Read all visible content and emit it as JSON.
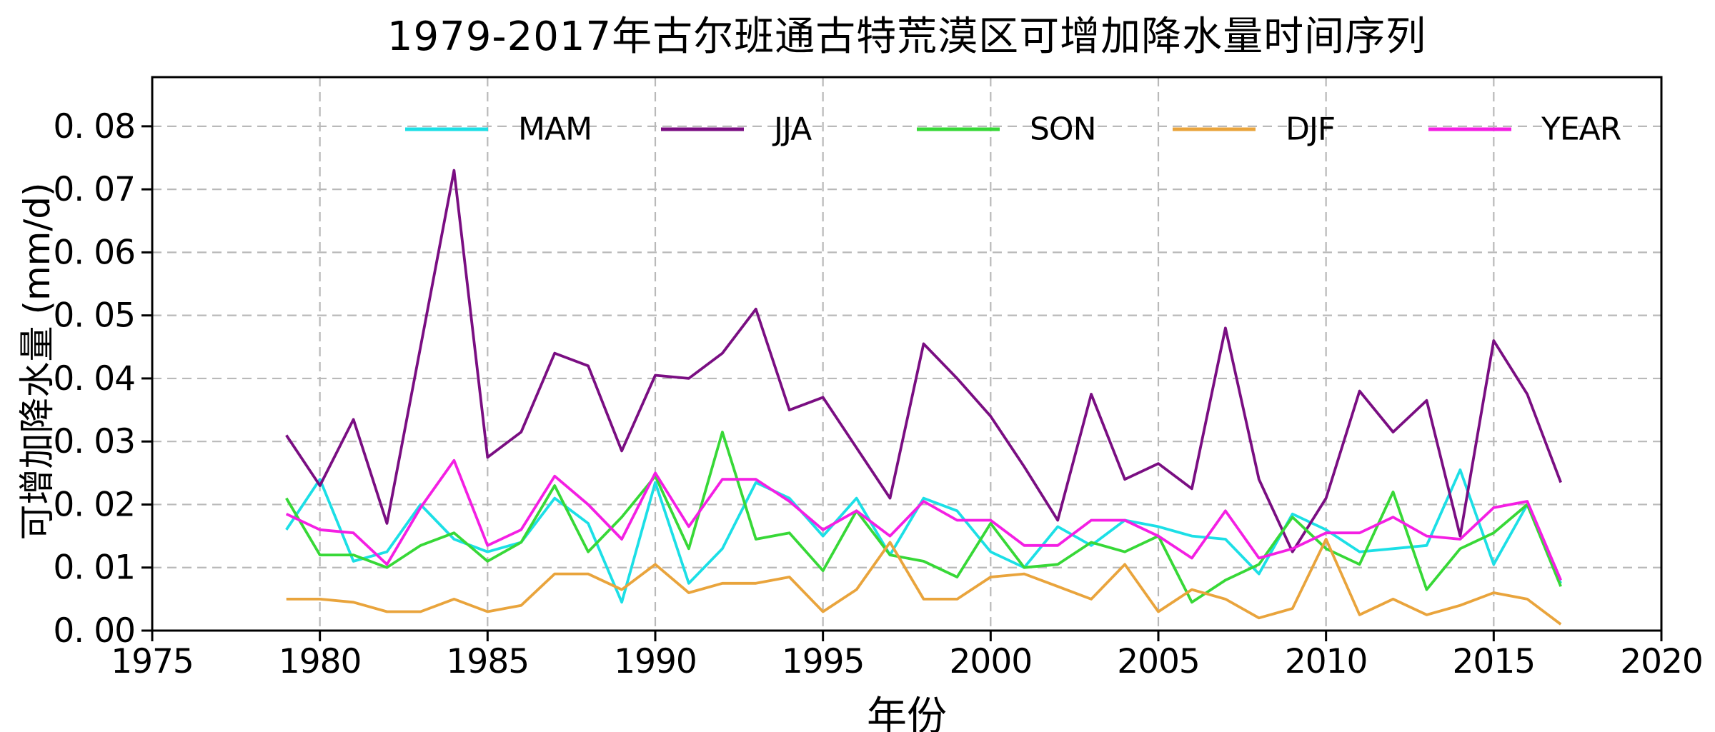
{
  "chart": {
    "title": "1979-2017年古尔班通古特荒漠区可增加降水量时间序列",
    "xlabel": "年份",
    "ylabel": "可增加降水量 (mm/d)"
  },
  "chart_data": {
    "type": "line",
    "title": "1979-2017年古尔班通古特荒漠区可增加降水量时间序列",
    "xlabel": "年份",
    "ylabel": "可增加降水量 (mm/d)",
    "x": [
      1979,
      1980,
      1981,
      1982,
      1983,
      1984,
      1985,
      1986,
      1987,
      1988,
      1989,
      1990,
      1991,
      1992,
      1993,
      1994,
      1995,
      1996,
      1997,
      1998,
      1999,
      2000,
      2001,
      2002,
      2003,
      2004,
      2005,
      2006,
      2007,
      2008,
      2009,
      2010,
      2011,
      2012,
      2013,
      2014,
      2015,
      2016,
      2017
    ],
    "series": [
      {
        "name": "MAM",
        "color": "#1CDFE6",
        "values": [
          0.016,
          0.024,
          0.011,
          0.0125,
          0.02,
          0.0145,
          0.0125,
          0.014,
          0.021,
          0.017,
          0.0045,
          0.0235,
          0.0075,
          0.013,
          0.0235,
          0.021,
          0.015,
          0.021,
          0.012,
          0.021,
          0.019,
          0.0125,
          0.01,
          0.0165,
          0.0135,
          0.0175,
          0.0165,
          0.015,
          0.0145,
          0.009,
          0.0185,
          0.016,
          0.0125,
          0.013,
          0.0135,
          0.0255,
          0.0105,
          0.02,
          0.0075
        ]
      },
      {
        "name": "JJA",
        "color": "#7A0E82",
        "values": [
          0.031,
          0.023,
          0.0335,
          0.017,
          0.045,
          0.073,
          0.0275,
          0.0315,
          0.044,
          0.042,
          0.0285,
          0.0405,
          0.04,
          0.044,
          0.051,
          0.035,
          0.037,
          0.029,
          0.021,
          0.0455,
          0.04,
          0.034,
          0.026,
          0.0175,
          0.0375,
          0.024,
          0.0265,
          0.0225,
          0.048,
          0.024,
          0.0125,
          0.021,
          0.038,
          0.0315,
          0.0365,
          0.015,
          0.046,
          0.0375,
          0.0235
        ]
      },
      {
        "name": "SON",
        "color": "#37D837",
        "values": [
          0.021,
          0.012,
          0.012,
          0.01,
          0.0135,
          0.0155,
          0.011,
          0.014,
          0.023,
          0.0125,
          0.018,
          0.0245,
          0.013,
          0.0315,
          0.0145,
          0.0155,
          0.0095,
          0.019,
          0.012,
          0.011,
          0.0085,
          0.017,
          0.01,
          0.0105,
          0.014,
          0.0125,
          0.015,
          0.0045,
          0.008,
          0.0105,
          0.018,
          0.013,
          0.0105,
          0.022,
          0.0065,
          0.013,
          0.0155,
          0.02,
          0.007
        ]
      },
      {
        "name": "DJF",
        "color": "#E9A43C",
        "values": [
          0.005,
          0.005,
          0.0045,
          0.003,
          0.003,
          0.005,
          0.003,
          0.004,
          0.009,
          0.009,
          0.0065,
          0.0105,
          0.006,
          0.0075,
          0.0075,
          0.0085,
          0.003,
          0.0065,
          0.014,
          0.005,
          0.005,
          0.0085,
          0.009,
          0.007,
          0.005,
          0.0105,
          0.003,
          0.0065,
          0.005,
          0.002,
          0.0035,
          0.0145,
          0.0025,
          0.005,
          0.0025,
          0.004,
          0.006,
          0.005,
          0.001
        ]
      },
      {
        "name": "YEAR",
        "color": "#F41FE3",
        "values": [
          0.0185,
          0.016,
          0.0155,
          0.0105,
          0.0195,
          0.027,
          0.0135,
          0.016,
          0.0245,
          0.02,
          0.0145,
          0.025,
          0.0165,
          0.024,
          0.024,
          0.0205,
          0.016,
          0.019,
          0.015,
          0.0205,
          0.0175,
          0.0175,
          0.0135,
          0.0135,
          0.0175,
          0.0175,
          0.015,
          0.0115,
          0.019,
          0.0115,
          0.013,
          0.0155,
          0.0155,
          0.018,
          0.015,
          0.0145,
          0.0195,
          0.0205,
          0.008
        ]
      }
    ],
    "xlim": [
      1975,
      2020
    ],
    "ylim": [
      0,
      0.0878
    ],
    "xticks": {
      "values": [
        1975,
        1980,
        1985,
        1990,
        1995,
        2000,
        2005,
        2010,
        2015,
        2020
      ],
      "labels": [
        "1975",
        "1980",
        "1985",
        "1990",
        "1995",
        "2000",
        "2005",
        "2010",
        "2015",
        "2020"
      ]
    },
    "yticks": {
      "values": [
        0,
        0.01,
        0.02,
        0.03,
        0.04,
        0.05,
        0.06,
        0.07,
        0.08
      ],
      "labels": [
        "0. 00",
        "0. 01",
        "0. 02",
        "0. 03",
        "0. 04",
        "0. 05",
        "0. 06",
        "0. 07",
        "0. 08"
      ]
    },
    "grid": true,
    "grid_style": "dashed",
    "legend_position": "top-inside-row",
    "legend_entries": [
      "MAM",
      "JJA",
      "SON",
      "DJF",
      "YEAR"
    ]
  },
  "style": {
    "grid_color": "#B9B9B9",
    "axis_color": "#000000",
    "background": "#FFFFFF"
  }
}
